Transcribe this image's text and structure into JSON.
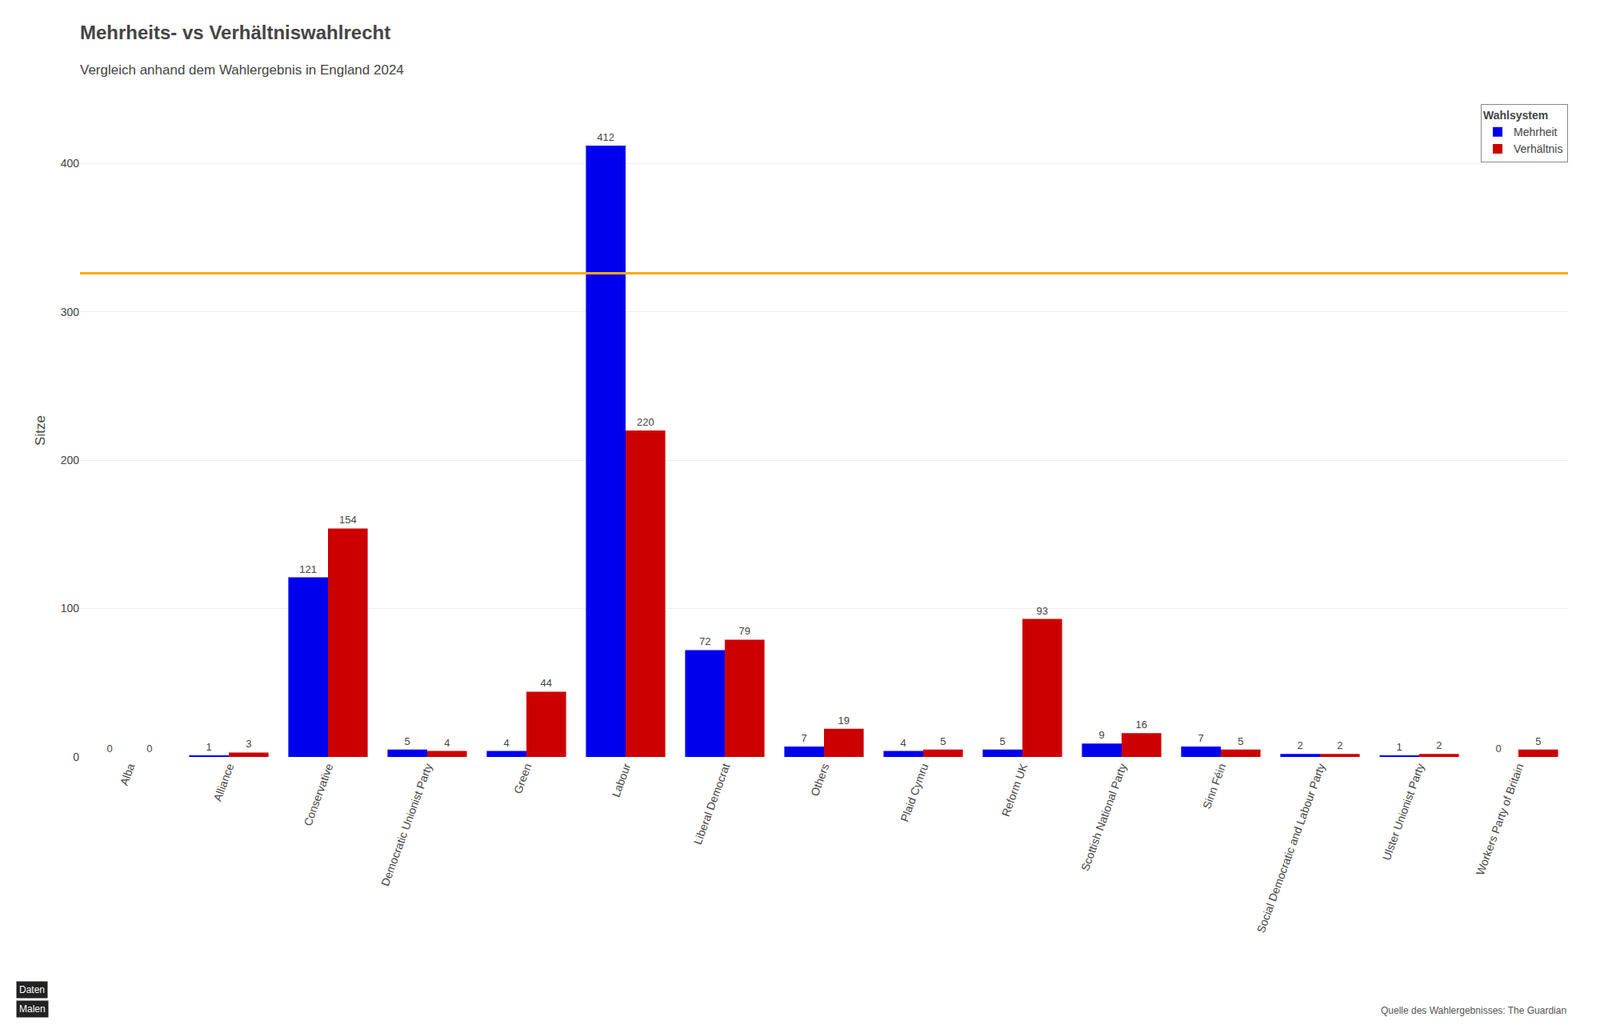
{
  "chart_data": {
    "type": "bar",
    "title": "Mehrheits- vs Verhältniswahlrecht",
    "subtitle": "Vergleich anhand dem Wahlergebnis in England 2024",
    "ylabel": "Sitze",
    "categories": [
      "Alba",
      "Alliance",
      "Conservative",
      "Democratic Unionist Party",
      "Green",
      "Labour",
      "Liberal Democrat",
      "Others",
      "Plaid Cymru",
      "Reform UK",
      "Scottish National Party",
      "Sinn Féin",
      "Social Democratic and Labour Party",
      "Ulster Unionist Party",
      "Workers Party of Britain"
    ],
    "series": [
      {
        "name": "Mehrheit",
        "color": "#0000ee",
        "values": [
          0,
          1,
          121,
          5,
          4,
          412,
          72,
          7,
          4,
          5,
          9,
          7,
          2,
          1,
          0
        ]
      },
      {
        "name": "Verhältnis",
        "color": "#cc0000",
        "values": [
          0,
          3,
          154,
          4,
          44,
          220,
          79,
          19,
          5,
          93,
          16,
          5,
          2,
          2,
          5
        ]
      }
    ],
    "legend_title": "Wahlsystem",
    "legend": "upper right",
    "ylim": [
      0,
      440
    ],
    "yticks": [
      0,
      100,
      200,
      300,
      400
    ],
    "grid": true,
    "data_labels": true,
    "majority_line": {
      "value": 326,
      "color": "#ffaa00"
    },
    "annotations": [
      "Quelle des Wahlergebnisses: The Guardian",
      "Daten",
      "Malen"
    ]
  }
}
